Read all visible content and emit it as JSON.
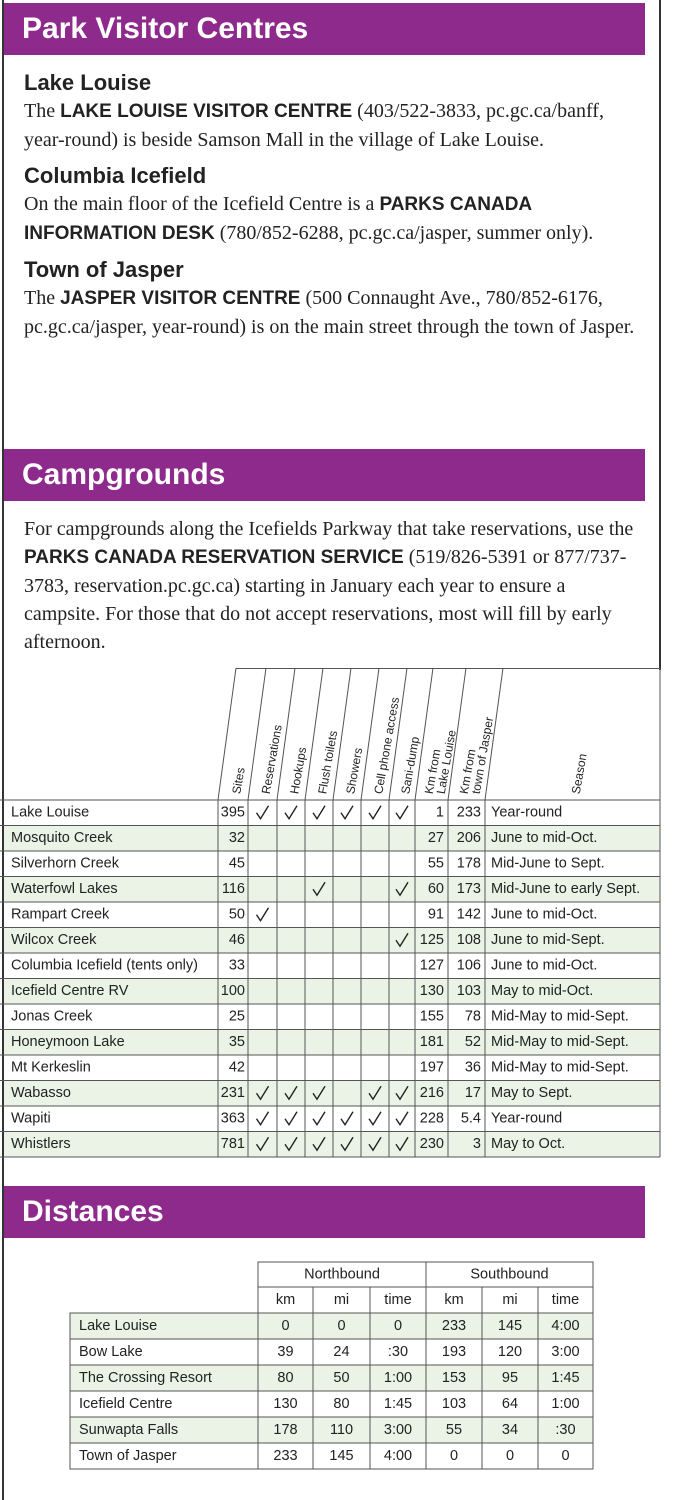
{
  "visitor_centres": {
    "title": "Park Visitor Centres",
    "entries": [
      {
        "heading": "Lake Louise",
        "text": [
          "The ",
          {
            "text": "LAKE LOUISE VISITOR CENTRE",
            "bold": true
          },
          " (403/522-3833, pc.gc.ca/banff, year-round) is beside Samson Mall in the village of Lake Louise."
        ]
      },
      {
        "heading": "Columbia Icefield",
        "text": [
          "On the main floor of the Icefield Centre is a ",
          {
            "text": "PARKS CANADA INFORMATION DESK",
            "bold": true
          },
          " (780/852-6288, pc.gc.ca/jasper, summer only)."
        ]
      },
      {
        "heading": "Town of Jasper",
        "text": [
          "The ",
          {
            "text": "JASPER VISITOR CENTRE",
            "bold": true
          },
          " (500 Connaught Ave., 780/852-6176, pc.gc.ca/jasper, year-round) is on the main street through the town of Jasper."
        ]
      }
    ]
  },
  "campgrounds": {
    "title": "Campgrounds",
    "intro": [
      "For campgrounds along the Icefields Parkway that take reservations, use the ",
      {
        "text": "PARKS CANADA RESERVATION SERVICE",
        "bold": true
      },
      " (519/826-5391 or 877/737-3783, reservation.pc.gc.ca) starting in January each year to ensure a campsite. For those that do not accept reservations, most will fill by early afternoon."
    ],
    "table": {
      "columns": [
        [
          "Sites"
        ],
        [
          "Reservations"
        ],
        [
          "Hookups"
        ],
        [
          "Flush toilets"
        ],
        [
          "Showers"
        ],
        [
          "Cell phone access"
        ],
        [
          "Sani-dump"
        ],
        [
          "Km from",
          "Lake Louise"
        ],
        [
          "Km from",
          "town of Jasper"
        ],
        [
          "Season"
        ]
      ],
      "rows": [
        {
          "name": "Lake Louise",
          "sites": 395,
          "amenities": [
            true,
            true,
            true,
            true,
            true,
            true
          ],
          "km_lake_louise": 1,
          "km_jasper": 233,
          "season": "Year-round"
        },
        {
          "name": "Mosquito Creek",
          "sites": 32,
          "amenities": [
            false,
            false,
            false,
            false,
            false,
            false
          ],
          "km_lake_louise": 27,
          "km_jasper": 206,
          "season": "June to mid-Oct."
        },
        {
          "name": "Silverhorn Creek",
          "sites": 45,
          "amenities": [
            false,
            false,
            false,
            false,
            false,
            false
          ],
          "km_lake_louise": 55,
          "km_jasper": 178,
          "season": "Mid-June to Sept."
        },
        {
          "name": "Waterfowl Lakes",
          "sites": 116,
          "amenities": [
            false,
            false,
            true,
            false,
            false,
            true
          ],
          "km_lake_louise": 60,
          "km_jasper": 173,
          "season": "Mid-June to early Sept."
        },
        {
          "name": "Rampart Creek",
          "sites": 50,
          "amenities": [
            true,
            false,
            false,
            false,
            false,
            false
          ],
          "km_lake_louise": 91,
          "km_jasper": 142,
          "season": "June to mid-Oct."
        },
        {
          "name": "Wilcox Creek",
          "sites": 46,
          "amenities": [
            false,
            false,
            false,
            false,
            false,
            true
          ],
          "km_lake_louise": 125,
          "km_jasper": 108,
          "season": "June to mid-Sept."
        },
        {
          "name": "Columbia Icefield (tents only)",
          "sites": 33,
          "amenities": [
            false,
            false,
            false,
            false,
            false,
            false
          ],
          "km_lake_louise": 127,
          "km_jasper": 106,
          "season": "June to mid-Oct."
        },
        {
          "name": "Icefield Centre RV",
          "sites": 100,
          "amenities": [
            false,
            false,
            false,
            false,
            false,
            false
          ],
          "km_lake_louise": 130,
          "km_jasper": 103,
          "season": "May to mid-Oct."
        },
        {
          "name": "Jonas Creek",
          "sites": 25,
          "amenities": [
            false,
            false,
            false,
            false,
            false,
            false
          ],
          "km_lake_louise": 155,
          "km_jasper": 78,
          "season": "Mid-May to mid-Sept."
        },
        {
          "name": "Honeymoon Lake",
          "sites": 35,
          "amenities": [
            false,
            false,
            false,
            false,
            false,
            false
          ],
          "km_lake_louise": 181,
          "km_jasper": 52,
          "season": "Mid-May to mid-Sept."
        },
        {
          "name": "Mt Kerkeslin",
          "sites": 42,
          "amenities": [
            false,
            false,
            false,
            false,
            false,
            false
          ],
          "km_lake_louise": 197,
          "km_jasper": 36,
          "season": "Mid-May to mid-Sept."
        },
        {
          "name": "Wabasso",
          "sites": 231,
          "amenities": [
            true,
            true,
            true,
            false,
            true,
            true
          ],
          "km_lake_louise": 216,
          "km_jasper": 17,
          "season": "May to Sept."
        },
        {
          "name": "Wapiti",
          "sites": 363,
          "amenities": [
            true,
            true,
            true,
            true,
            true,
            true
          ],
          "km_lake_louise": 228,
          "km_jasper": 5.4,
          "season": "Year-round"
        },
        {
          "name": "Whistlers",
          "sites": 781,
          "amenities": [
            true,
            true,
            true,
            true,
            true,
            true
          ],
          "km_lake_louise": 230,
          "km_jasper": 3,
          "season": "May to Oct."
        }
      ]
    }
  },
  "distances": {
    "title": "Distances",
    "groups": [
      "Northbound",
      "Southbound"
    ],
    "columns": [
      "km",
      "mi",
      "time",
      "km",
      "mi",
      "time"
    ],
    "rows": [
      {
        "place": "Lake Louise",
        "values": [
          0,
          0,
          0,
          233,
          145,
          "4:00"
        ]
      },
      {
        "place": "Bow Lake",
        "values": [
          39,
          24,
          ":30",
          193,
          120,
          "3:00"
        ]
      },
      {
        "place": "The Crossing Resort",
        "values": [
          80,
          50,
          "1:00",
          153,
          95,
          "1:45"
        ]
      },
      {
        "place": "Icefield Centre",
        "values": [
          130,
          80,
          "1:45",
          103,
          64,
          "1:00"
        ]
      },
      {
        "place": "Sunwapta Falls",
        "values": [
          178,
          110,
          "3:00",
          55,
          34,
          ":30"
        ]
      },
      {
        "place": "Town of Jasper",
        "values": [
          233,
          145,
          "4:00",
          0,
          0,
          0
        ]
      }
    ]
  }
}
